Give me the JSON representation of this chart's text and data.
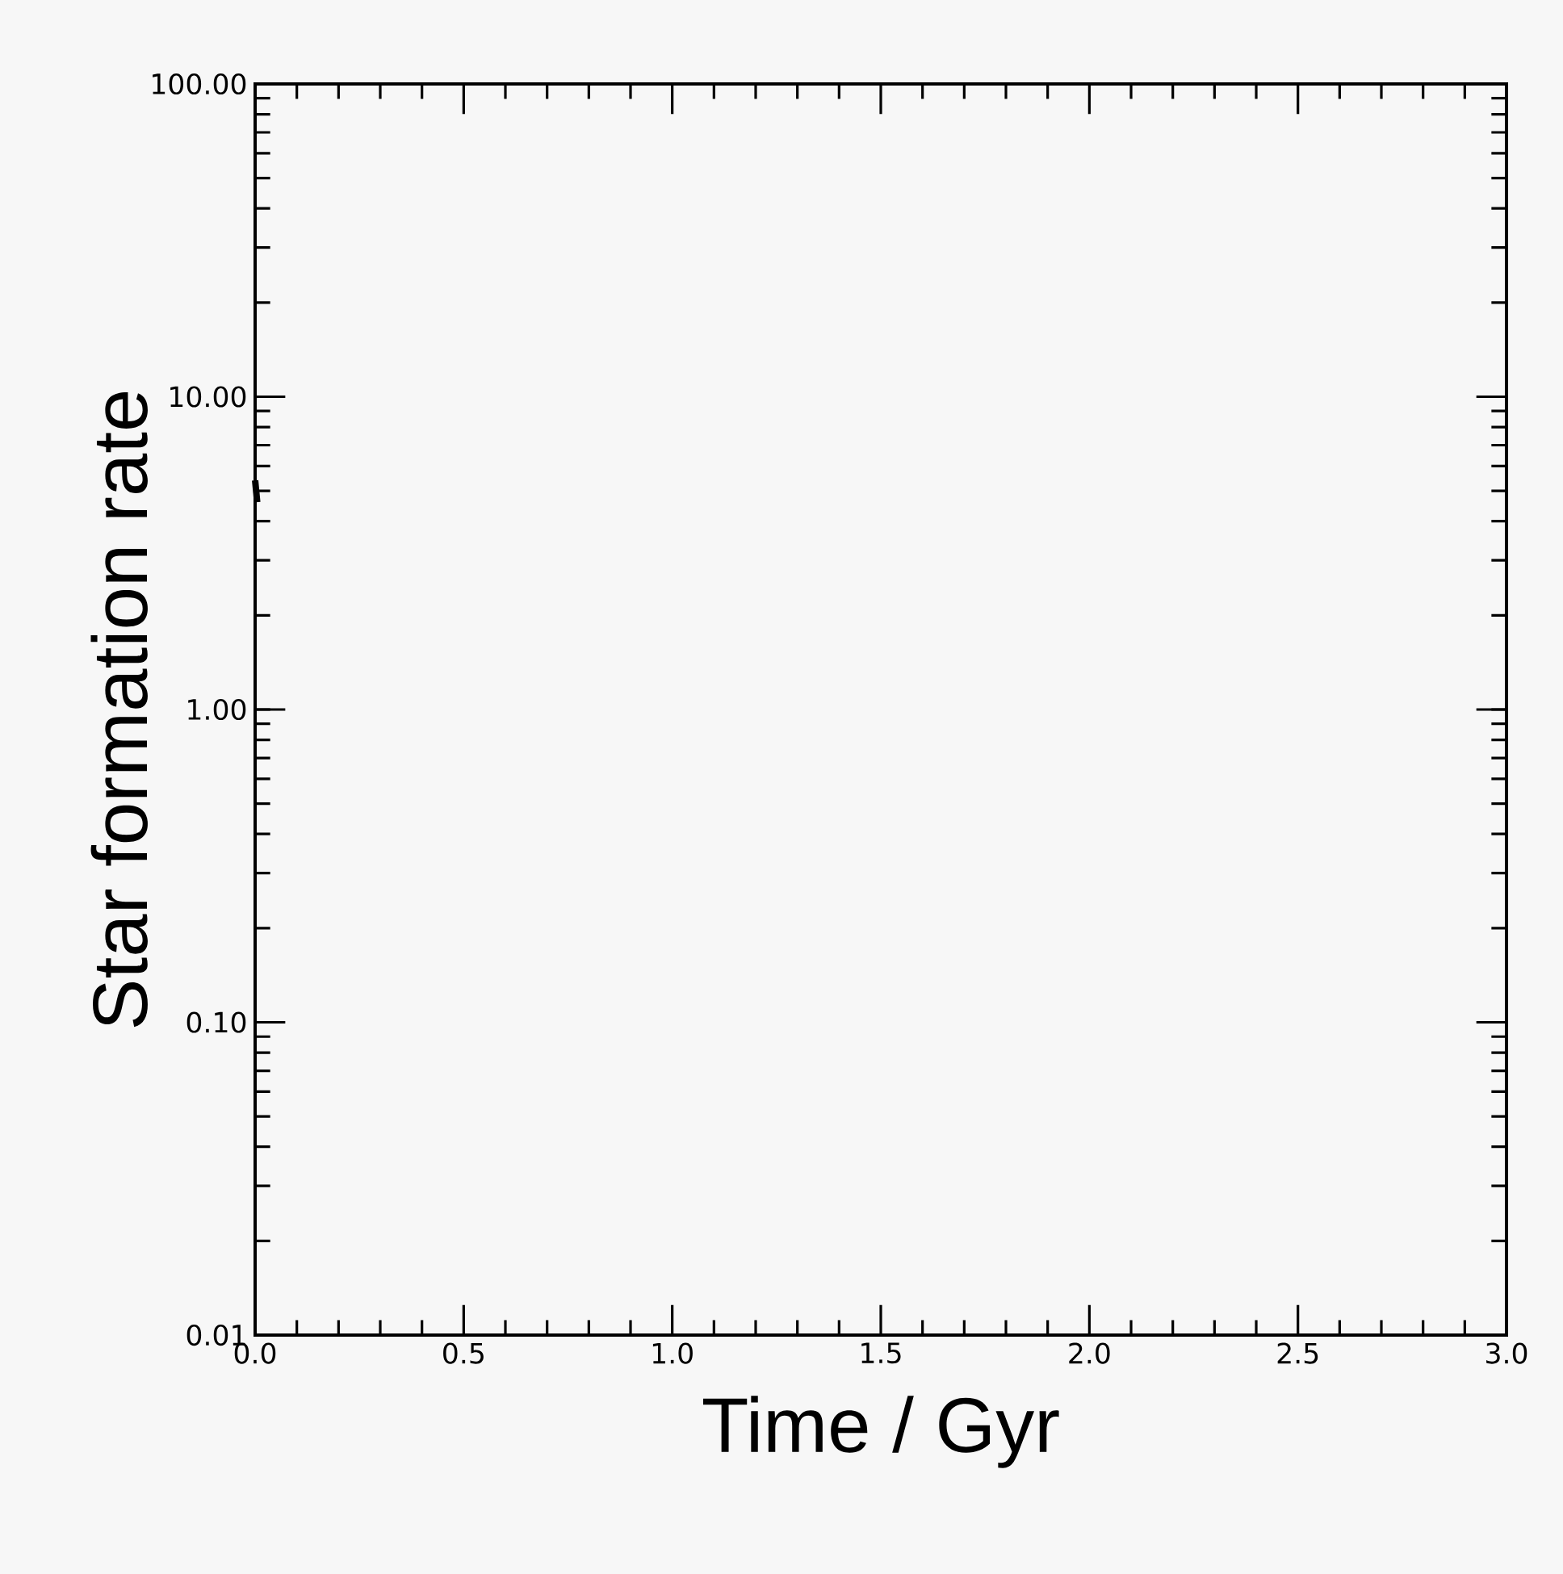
{
  "chart_data": {
    "type": "line",
    "xlabel": "Time / Gyr",
    "ylabel": "Star formation rate",
    "log": "y",
    "xlim": [
      0,
      3
    ],
    "ylim": [
      0.01,
      100
    ],
    "xticks": [
      {
        "value": 0,
        "label": "0.0"
      },
      {
        "value": 0.5,
        "label": "0.5"
      },
      {
        "value": 1,
        "label": "1.0"
      },
      {
        "value": 1.5,
        "label": "1.5"
      },
      {
        "value": 2,
        "label": "2.0"
      },
      {
        "value": 2.5,
        "label": "2.5"
      },
      {
        "value": 3,
        "label": "3.0"
      }
    ],
    "yticks": [
      {
        "value": 0.01,
        "label": "0.01"
      },
      {
        "value": 0.1,
        "label": "0.10"
      },
      {
        "value": 1,
        "label": "1.00"
      },
      {
        "value": 10,
        "label": "10.00"
      },
      {
        "value": 100,
        "label": "100.00"
      }
    ],
    "series": [
      {
        "color": "#000000",
        "x": [
          0,
          0.005
        ],
        "values": [
          5.4,
          4.6
        ]
      }
    ]
  }
}
